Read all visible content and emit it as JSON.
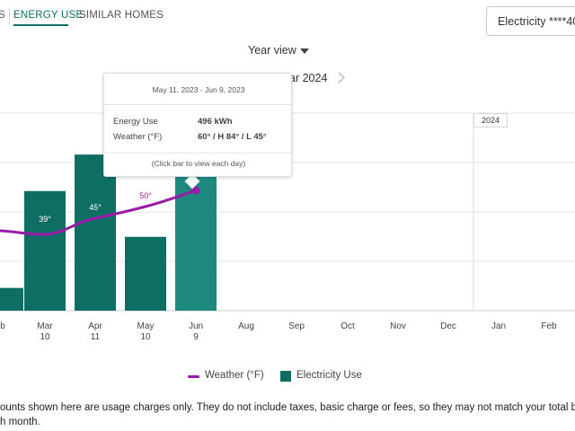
{
  "tabs": {
    "previous_fragment": "S",
    "active": "ENERGY USE",
    "similar": "SIMILAR HOMES"
  },
  "account_select": {
    "value": "Electricity ****40"
  },
  "view_select": {
    "value": "Year view"
  },
  "year_nav": {
    "label": "ar 2024"
  },
  "chart_data": {
    "type": "bar",
    "categories": [
      "b",
      "Mar\n10",
      "Apr\n11",
      "May\n10",
      "Jun\n9",
      "Aug",
      "Sep",
      "Oct",
      "Nov",
      "Dec",
      "Jan",
      "Feb"
    ],
    "series": [
      {
        "name": "Electricity Use",
        "type": "bar",
        "color": "#0f6e64",
        "values": [
          78,
          410,
          535,
          253,
          496,
          null,
          null,
          null,
          null,
          null,
          null,
          null
        ]
      },
      {
        "name": "Weather (°F)",
        "type": "line",
        "color": "#9b1aa8",
        "values": [
          33,
          39,
          45,
          50,
          60,
          null,
          null,
          null,
          null,
          null,
          null,
          null
        ]
      }
    ],
    "temperature_labels": [
      "39°",
      "45°",
      "50°"
    ],
    "year_divider_label": "2024",
    "ylabel": "",
    "grid": true
  },
  "tooltip": {
    "date_range": "May 11, 2023 - Jun 9, 2023",
    "energy_label": "Energy Use",
    "energy_value": "496 kWh",
    "weather_label": "Weather (°F)",
    "weather_value": "60° / H 84° / L 45°",
    "hint": "(Click bar to view each day)"
  },
  "legend": {
    "weather": "Weather (°F)",
    "electricity": "Electricity Use",
    "weather_color": "#9b1aa8",
    "electricity_color": "#0f6e64"
  },
  "disclaimer": {
    "line1": "ounts shown here are usage charges only. They do not include taxes, basic charge or fees, so they may not match your total b",
    "line2": "h month."
  }
}
